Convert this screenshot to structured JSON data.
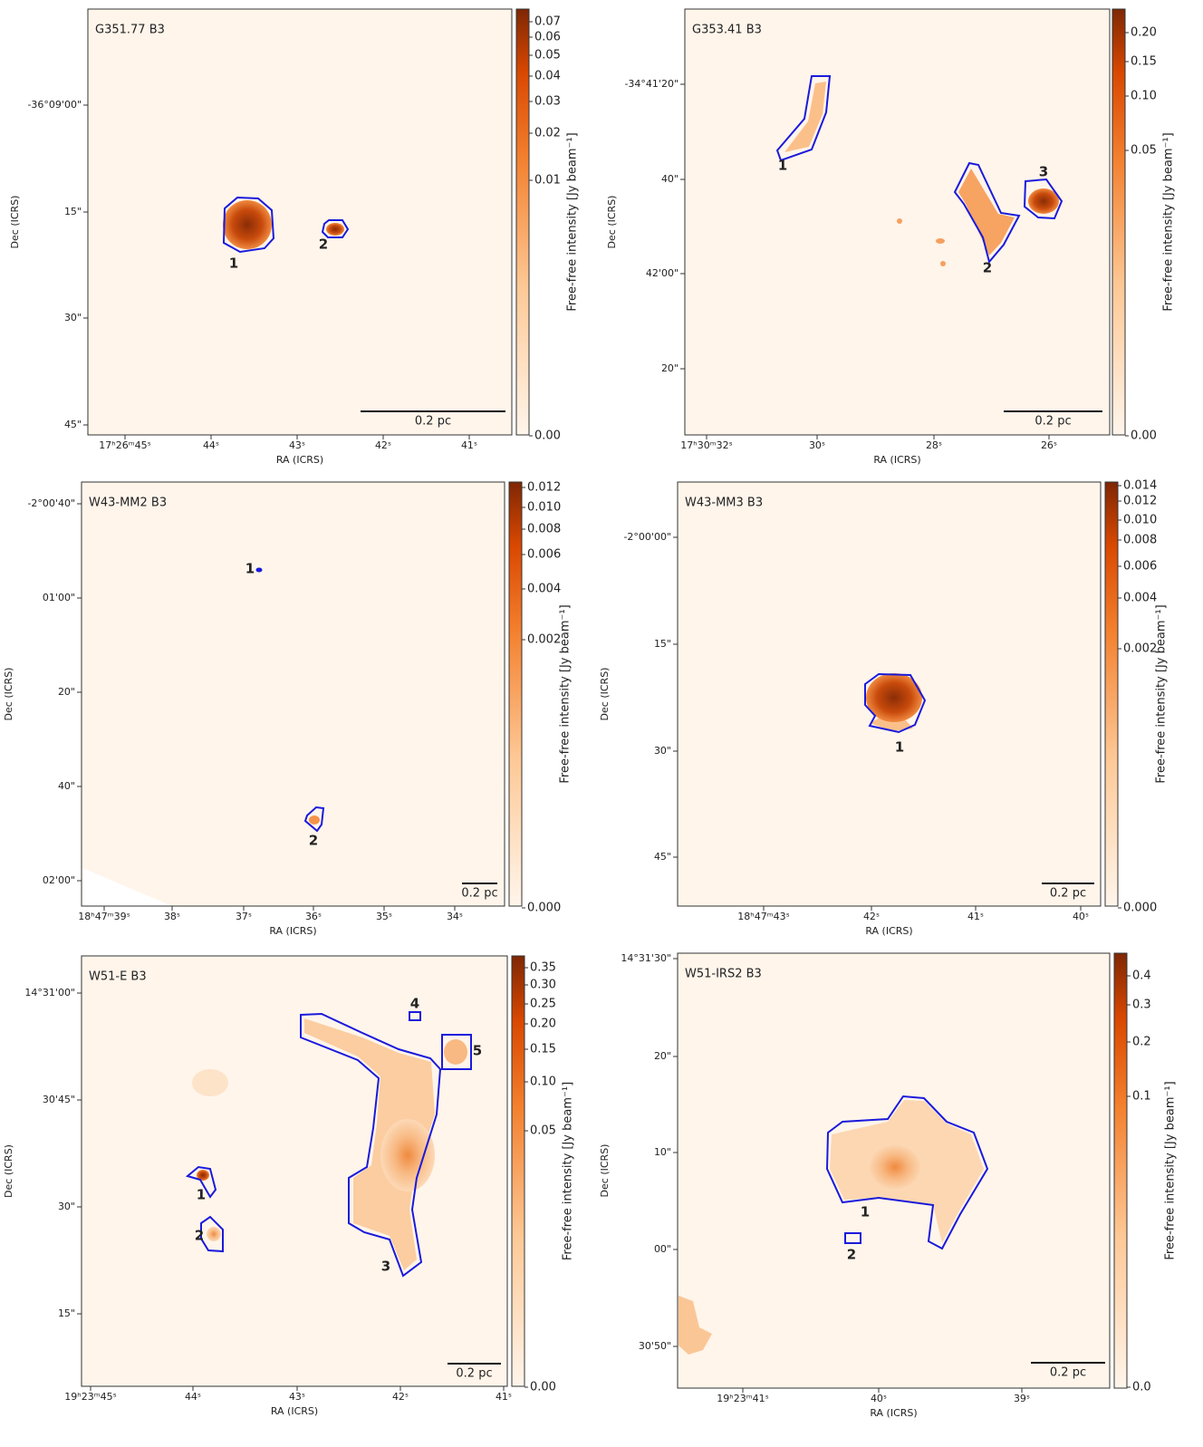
{
  "panels": [
    {
      "title": "G351.77 B3",
      "xlabel": "RA (ICRS)",
      "ylabel": "Dec (ICRS)",
      "cbar_label": "Free-free intensity [Jy beam⁻¹]",
      "xticks": [
        "17ʰ26ᵐ45ˢ",
        "44ˢ",
        "43ˢ",
        "42ˢ",
        "41ˢ"
      ],
      "yticks": [
        "-36°09'00\"",
        "15\"",
        "30\"",
        "45\""
      ],
      "cbar_ticks": [
        "0.07",
        "0.06",
        "0.05",
        "0.04",
        "0.03",
        "0.02",
        "0.01",
        "0.00"
      ],
      "scale": "0.2 pc",
      "regions": [
        "1",
        "2"
      ]
    },
    {
      "title": "G353.41 B3",
      "xlabel": "RA (ICRS)",
      "ylabel": "Dec (ICRS)",
      "cbar_label": "Free-free intensity [Jy beam⁻¹]",
      "xticks": [
        "17ʰ30ᵐ32ˢ",
        "30ˢ",
        "28ˢ",
        "26ˢ"
      ],
      "yticks": [
        "-34°41'20\"",
        "40\"",
        "42'00\"",
        "20\""
      ],
      "cbar_ticks": [
        "0.20",
        "0.15",
        "0.10",
        "0.05",
        "0.00"
      ],
      "scale": "0.2 pc",
      "regions": [
        "1",
        "2",
        "3"
      ]
    },
    {
      "title": "W43-MM2 B3",
      "xlabel": "RA (ICRS)",
      "ylabel": "Dec (ICRS)",
      "cbar_label": "Free-free intensity [Jy beam⁻¹]",
      "xticks": [
        "18ʰ47ᵐ39ˢ",
        "38ˢ",
        "37ˢ",
        "36ˢ",
        "35ˢ",
        "34ˢ"
      ],
      "yticks": [
        "-2°00'40\"",
        "01'00\"",
        "20\"",
        "40\"",
        "02'00\""
      ],
      "cbar_ticks": [
        "0.012",
        "0.010",
        "0.008",
        "0.006",
        "0.004",
        "0.002",
        "0.000"
      ],
      "scale": "0.2 pc",
      "regions": [
        "1",
        "2"
      ]
    },
    {
      "title": "W43-MM3 B3",
      "xlabel": "RA (ICRS)",
      "ylabel": "Dec (ICRS)",
      "cbar_label": "Free-free intensity [Jy beam⁻¹]",
      "xticks": [
        "18ʰ47ᵐ43ˢ",
        "42ˢ",
        "41ˢ",
        "40ˢ"
      ],
      "yticks": [
        "-2°00'00\"",
        "15\"",
        "30\"",
        "45\""
      ],
      "cbar_ticks": [
        "0.014",
        "0.012",
        "0.010",
        "0.008",
        "0.006",
        "0.004",
        "0.002",
        "0.000"
      ],
      "scale": "0.2 pc",
      "regions": [
        "1"
      ]
    },
    {
      "title": "W51-E B3",
      "xlabel": "RA (ICRS)",
      "ylabel": "Dec (ICRS)",
      "cbar_label": "Free-free intensity [Jy beam⁻¹]",
      "xticks": [
        "19ʰ23ᵐ45ˢ",
        "44ˢ",
        "43ˢ",
        "42ˢ",
        "41ˢ"
      ],
      "yticks": [
        "14°31'00\"",
        "30'45\"",
        "30\"",
        "15\""
      ],
      "cbar_ticks": [
        "0.35",
        "0.30",
        "0.25",
        "0.20",
        "0.15",
        "0.10",
        "0.05",
        "0.00"
      ],
      "scale": "0.2 pc",
      "regions": [
        "1",
        "2",
        "3",
        "4",
        "5"
      ]
    },
    {
      "title": "W51-IRS2 B3",
      "xlabel": "RA (ICRS)",
      "ylabel": "Dec (ICRS)",
      "cbar_label": "Free-free intensity [Jy beam⁻¹]",
      "xticks": [
        "19ʰ23ᵐ41ˢ",
        "40ˢ",
        "39ˢ"
      ],
      "yticks": [
        "14°31'30\"",
        "20\"",
        "10\"",
        "00\"",
        "30'50\""
      ],
      "cbar_ticks": [
        "0.4",
        "0.3",
        "0.2",
        "0.1",
        "0.0"
      ],
      "scale": "0.2 pc",
      "regions": [
        "1",
        "2"
      ]
    }
  ]
}
